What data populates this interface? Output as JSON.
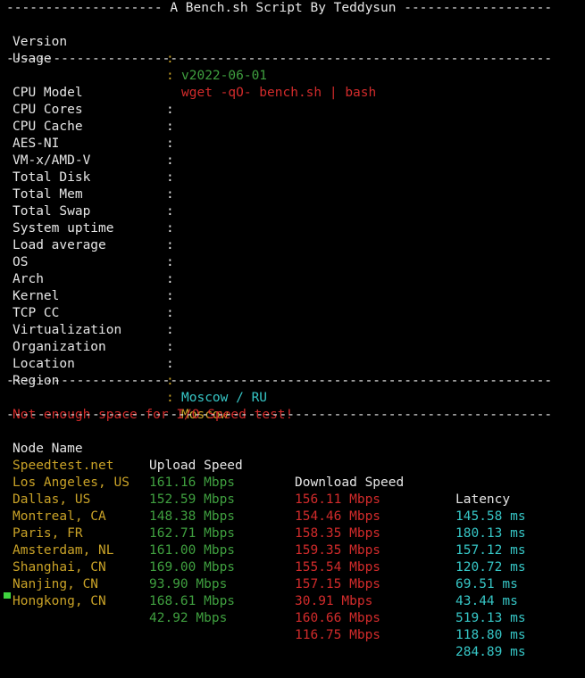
{
  "header": {
    "separator_title": "-------------------- A Bench.sh Script By Teddysun -------------------",
    "version_label": "Version",
    "version_value": "v2022-06-01",
    "usage_label": "Usage",
    "usage_value": "wget -qO- bench.sh | bash"
  },
  "separator_line": "----------------------------------------------------------------------",
  "colon": ":",
  "system": [
    {
      "label": "CPU Model",
      "value": ""
    },
    {
      "label": "CPU Cores",
      "value": ""
    },
    {
      "label": "CPU Cache",
      "value": ""
    },
    {
      "label": "AES-NI",
      "value": ""
    },
    {
      "label": "VM-x/AMD-V",
      "value": ""
    },
    {
      "label": "Total Disk",
      "value": ""
    },
    {
      "label": "Total Mem",
      "value": ""
    },
    {
      "label": "Total Swap",
      "value": ""
    },
    {
      "label": "System uptime",
      "value": ""
    },
    {
      "label": "Load average",
      "value": ""
    },
    {
      "label": "OS",
      "value": ""
    },
    {
      "label": "Arch",
      "value": ""
    },
    {
      "label": "Kernel",
      "value": ""
    },
    {
      "label": "TCP CC",
      "value": ""
    },
    {
      "label": "Virtualization",
      "value": ""
    },
    {
      "label": "Organization",
      "value": ""
    },
    {
      "label": "Location",
      "value": "Moscow / RU"
    },
    {
      "label": "Region",
      "value": "Moscow"
    }
  ],
  "io_message": "Not enough space for I/O Speed test!",
  "speed_table": {
    "headers": {
      "node": "Node Name",
      "upload": "Upload Speed",
      "download": "Download Speed",
      "latency": "Latency"
    },
    "rows": [
      {
        "node": "Speedtest.net",
        "upload": "161.16 Mbps",
        "download": "156.11 Mbps",
        "latency": "145.58 ms"
      },
      {
        "node": "Los Angeles, US",
        "upload": "152.59 Mbps",
        "download": "154.46 Mbps",
        "latency": "180.13 ms"
      },
      {
        "node": "Dallas, US",
        "upload": "148.38 Mbps",
        "download": "158.35 Mbps",
        "latency": "157.12 ms"
      },
      {
        "node": "Montreal, CA",
        "upload": "162.71 Mbps",
        "download": "159.35 Mbps",
        "latency": "120.72 ms"
      },
      {
        "node": "Paris, FR",
        "upload": "161.00 Mbps",
        "download": "155.54 Mbps",
        "latency": "69.51 ms"
      },
      {
        "node": "Amsterdam, NL",
        "upload": "169.00 Mbps",
        "download": "157.15 Mbps",
        "latency": "43.44 ms"
      },
      {
        "node": "Shanghai, CN",
        "upload": "93.90 Mbps",
        "download": "30.91 Mbps",
        "latency": "519.13 ms"
      },
      {
        "node": "Nanjing, CN",
        "upload": "168.61 Mbps",
        "download": "160.66 Mbps",
        "latency": "118.80 ms"
      },
      {
        "node": "Hongkong, CN",
        "upload": "42.92 Mbps",
        "download": "116.75 Mbps",
        "latency": "284.89 ms"
      }
    ]
  },
  "colors": {
    "background": "#000000",
    "text": "#e6e6e6",
    "green": "#3f9f3f",
    "red": "#d22b2b",
    "cyan": "#36c6c6",
    "yellow": "#c9a227",
    "cursor": "#3fd43f"
  }
}
